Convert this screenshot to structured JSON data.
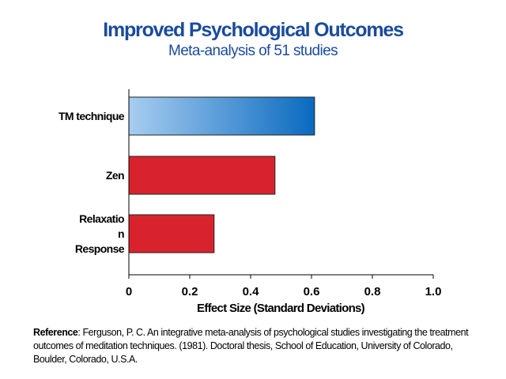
{
  "chart_data": {
    "type": "bar",
    "orientation": "horizontal",
    "title": "Improved Psychological Outcomes",
    "subtitle": "Meta-analysis of 51 studies",
    "xlabel": "Effect Size (Standard Deviations)",
    "ylabel": "",
    "categories": [
      "TM technique",
      "Zen",
      "Relaxation Response"
    ],
    "category_label_lines": [
      [
        "TM technique"
      ],
      [
        "Zen"
      ],
      [
        "Relaxatio",
        "n",
        "Response"
      ]
    ],
    "values": [
      0.61,
      0.48,
      0.28
    ],
    "xlim": [
      0,
      1.0
    ],
    "x_ticks": [
      "0",
      "0.2",
      "0.4",
      "0.6",
      "0.8",
      "1.0"
    ],
    "grid": false,
    "bar_colors": [
      "#3b86d0",
      "#d8232e",
      "#d8232e"
    ],
    "gradient_first_bar": {
      "from": "#a7cdf0",
      "to": "#0a6abf"
    }
  },
  "reference": {
    "label": "Reference",
    "text": ": Ferguson, P. C. An integrative meta-analysis of psychological studies investigating the treatment outcomes of meditation techniques. (1981). Doctoral thesis, School of Education, University of Colorado, Boulder, Colorado, U.S.A."
  }
}
